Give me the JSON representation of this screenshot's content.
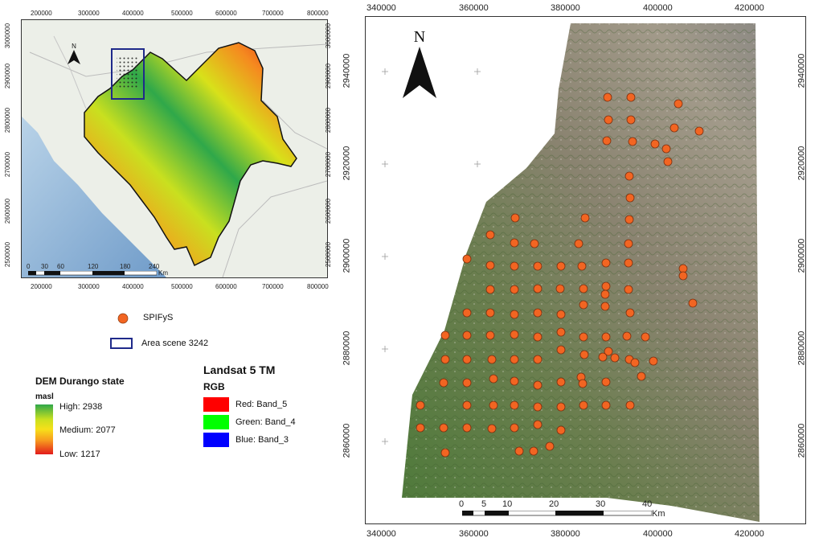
{
  "left_map": {
    "top_ticks": [
      "200000",
      "300000",
      "400000",
      "500000",
      "600000",
      "700000",
      "800000"
    ],
    "bottom_ticks": [
      "200000",
      "300000",
      "400000",
      "500000",
      "600000",
      "700000",
      "800000"
    ],
    "left_ticks": [
      "3000000",
      "2900000",
      "2800000",
      "2700000",
      "2600000",
      "2500000"
    ],
    "right_ticks": [
      "3000000",
      "2900000",
      "2800000",
      "2700000",
      "2600000",
      "2500000"
    ],
    "north": "N",
    "scalebar_labels": [
      "0",
      "30",
      "60",
      "120",
      "180",
      "240"
    ],
    "scalebar_unit": "Km"
  },
  "right_map": {
    "top_ticks": [
      "340000",
      "360000",
      "380000",
      "400000",
      "420000"
    ],
    "bottom_ticks": [
      "340000",
      "360000",
      "380000",
      "400000",
      "420000"
    ],
    "left_ticks": [
      "2940000",
      "2920000",
      "2900000",
      "2880000",
      "2860000"
    ],
    "right_ticks": [
      "2940000",
      "2920000",
      "2900000",
      "2880000",
      "2860000"
    ],
    "north": "N",
    "scalebar_labels": [
      "0",
      "5",
      "10",
      "20",
      "30",
      "40"
    ],
    "scalebar_unit": "Km"
  },
  "legend": {
    "point_label": "SPIFyS",
    "point_color": "#f26522",
    "area_label": "Area scene 3242",
    "area_color": "#1f2a8a",
    "dem_title": "DEM Durango state",
    "dem_unit": "masl",
    "dem_high": "High:     2938",
    "dem_medium": "Medium: 2077",
    "dem_low": "Low:      1217",
    "landsat_title": "Landsat 5 TM",
    "rgb_title": "RGB",
    "bands": [
      {
        "label": "Red:    Band_5",
        "color": "#ff0000"
      },
      {
        "label": "Green: Band_4",
        "color": "#00ff00"
      },
      {
        "label": "Blue:   Band_3",
        "color": "#0000ff"
      }
    ]
  }
}
